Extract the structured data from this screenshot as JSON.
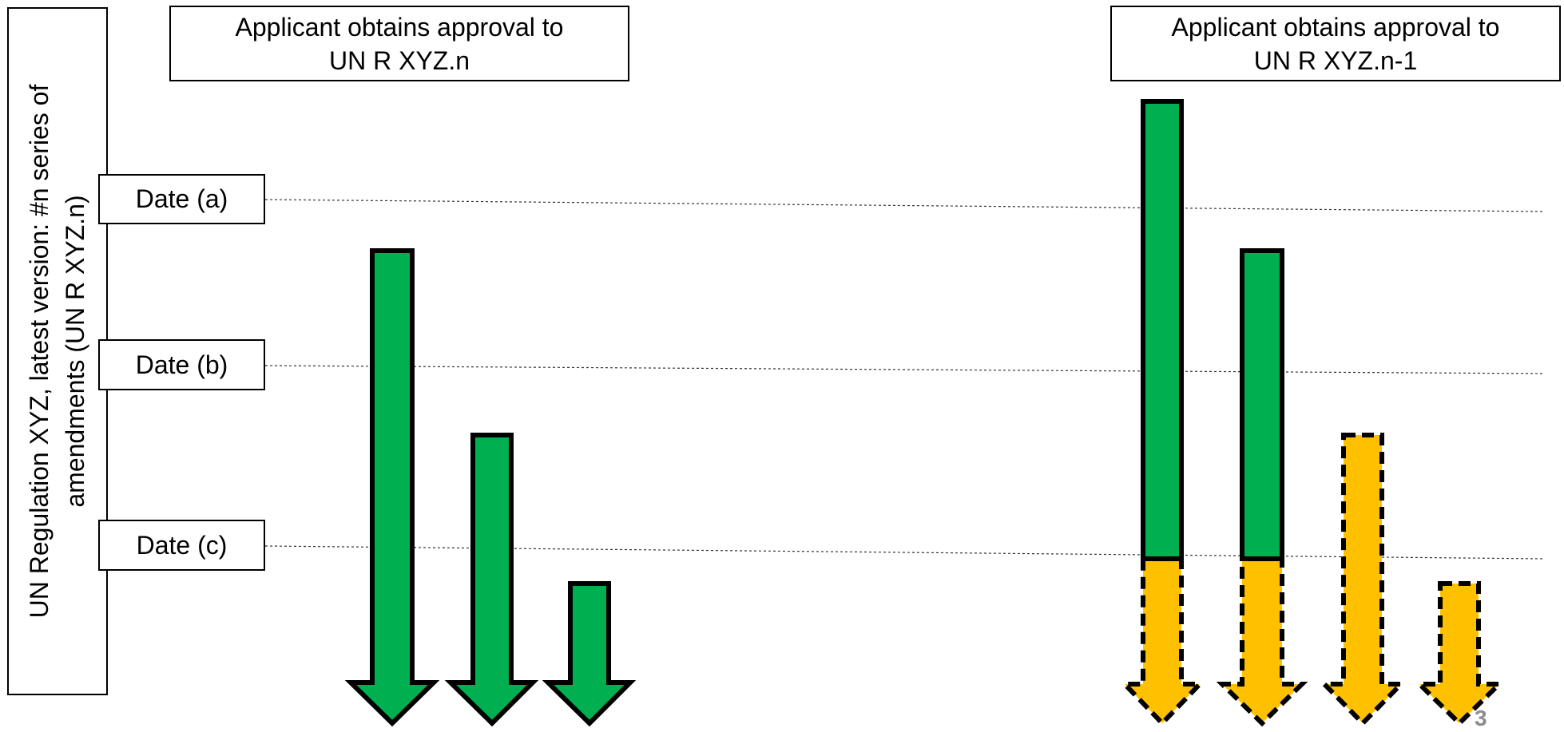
{
  "header": {
    "left_line1": "Applicant obtains approval to",
    "left_line2": "UN R XYZ.n",
    "right_line1": "Applicant obtains approval to",
    "right_line2": "UN R XYZ.n-1"
  },
  "sidebar": {
    "line1": "UN Regulation XYZ, latest version: #n series of",
    "line2": "amendments (UN R XYZ.n)"
  },
  "dates": {
    "a": "Date (a)",
    "b": "Date (b)",
    "c": "Date (c)"
  },
  "page_number": "3",
  "colors": {
    "valid": "#00b050",
    "transitional": "#ffc000",
    "outline": "#000000",
    "page_number": "#8c8c8c"
  }
}
